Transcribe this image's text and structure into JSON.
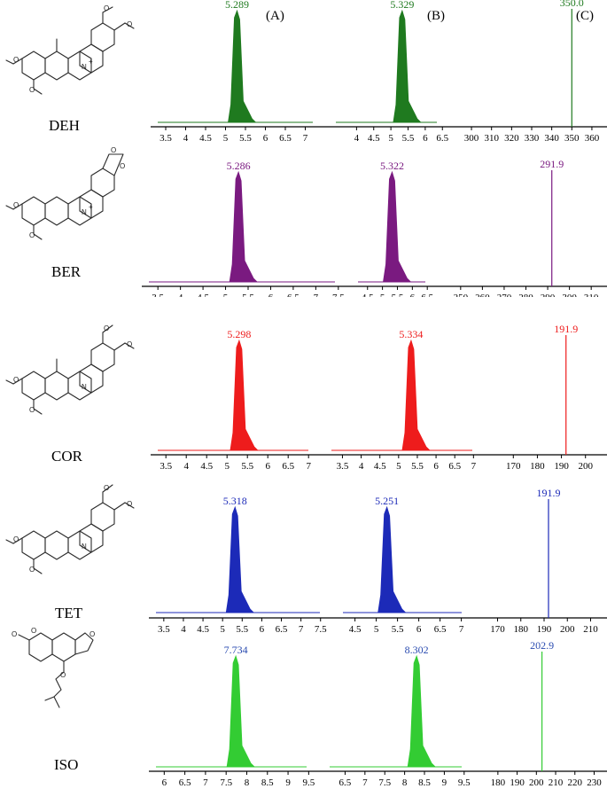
{
  "panel_letters": [
    "(A)",
    "(B)",
    "(C)"
  ],
  "compounds": [
    "DEH",
    "BER",
    "COR",
    "TET",
    "ISO"
  ],
  "colors": {
    "DEH": "#1f7a1f",
    "BER": "#7a1a80",
    "COR": "#ee1c1c",
    "TET": "#1c2ab8",
    "ISO": "#33cc33",
    "ISO_label": "#2a4bb0",
    "axis": "#000000"
  },
  "chart_data": [
    {
      "compound": "DEH",
      "type": "line",
      "segments": [
        {
          "panel": "A",
          "kind": "chromatogram",
          "x_ticks": [
            3.5,
            4,
            4.5,
            5,
            5.5,
            6,
            6.5,
            7
          ],
          "x_range": [
            3.3,
            7.5
          ],
          "peak_x": 5.289,
          "peak_label": "5.289"
        },
        {
          "panel": "B",
          "kind": "chromatogram",
          "x_ticks": [
            4,
            4.5,
            5,
            5.5,
            6,
            6.5
          ],
          "x_range": [
            3.5,
            6.7
          ],
          "peak_x": 5.329,
          "peak_label": "5.329"
        },
        {
          "panel": "C",
          "kind": "mass_spectrum",
          "x_ticks": [
            300,
            310,
            320,
            330,
            340,
            350,
            360
          ],
          "x_range": [
            296,
            364
          ],
          "peak_x": 350.0,
          "peak_label": "350.0"
        }
      ]
    },
    {
      "compound": "BER",
      "type": "line",
      "segments": [
        {
          "panel": "A",
          "kind": "chromatogram",
          "x_ticks": [
            3.5,
            4,
            4.5,
            5,
            5.5,
            6,
            6.5,
            7,
            7.5
          ],
          "x_range": [
            3.3,
            7.7
          ],
          "peak_x": 5.286,
          "peak_label": "5.286"
        },
        {
          "panel": "B",
          "kind": "chromatogram",
          "x_ticks": [
            4.5,
            5,
            5.5,
            6,
            6.5
          ],
          "x_range": [
            4.3,
            6.85
          ],
          "peak_x": 5.322,
          "peak_label": "5.322"
        },
        {
          "panel": "C",
          "kind": "mass_spectrum",
          "x_ticks": [
            250,
            260,
            270,
            280,
            290,
            300,
            310
          ],
          "x_range": [
            246,
            314
          ],
          "peak_x": 291.9,
          "peak_label": "291.9"
        }
      ]
    },
    {
      "compound": "COR",
      "type": "line",
      "segments": [
        {
          "panel": "A",
          "kind": "chromatogram",
          "x_ticks": [
            3.5,
            4,
            4.5,
            5,
            5.5,
            6,
            6.5,
            7
          ],
          "x_range": [
            3.3,
            7.3
          ],
          "peak_x": 5.298,
          "peak_label": "5.298"
        },
        {
          "panel": "B",
          "kind": "chromatogram",
          "x_ticks": [
            3.5,
            4,
            4.5,
            5,
            5.5,
            6,
            6.5,
            7
          ],
          "x_range": [
            3.3,
            7.3
          ],
          "peak_x": 5.334,
          "peak_label": "5.334"
        },
        {
          "panel": "C",
          "kind": "mass_spectrum",
          "x_ticks": [
            170,
            180,
            190,
            200
          ],
          "x_range": [
            164,
            206
          ],
          "peak_x": 191.9,
          "peak_label": "191.9"
        }
      ]
    },
    {
      "compound": "TET",
      "type": "line",
      "segments": [
        {
          "panel": "A",
          "kind": "chromatogram",
          "x_ticks": [
            3.5,
            4,
            4.5,
            5,
            5.5,
            6,
            6.5,
            7,
            7.5
          ],
          "x_range": [
            3.3,
            7.8
          ],
          "peak_x": 5.318,
          "peak_label": "5.318"
        },
        {
          "panel": "B",
          "kind": "chromatogram",
          "x_ticks": [
            4.5,
            5,
            5.5,
            6,
            6.5,
            7
          ],
          "x_range": [
            4.3,
            7.3
          ],
          "peak_x": 5.251,
          "peak_label": "5.251"
        },
        {
          "panel": "C",
          "kind": "mass_spectrum",
          "x_ticks": [
            170,
            180,
            190,
            200,
            210
          ],
          "x_range": [
            166,
            214
          ],
          "peak_x": 191.9,
          "peak_label": "191.9"
        }
      ]
    },
    {
      "compound": "ISO",
      "type": "line",
      "segments": [
        {
          "panel": "A",
          "kind": "chromatogram",
          "x_ticks": [
            6,
            6.5,
            7,
            7.5,
            8,
            8.5,
            9,
            9.5
          ],
          "x_range": [
            5.8,
            9.75
          ],
          "peak_x": 7.734,
          "peak_label": "7.734"
        },
        {
          "panel": "B",
          "kind": "chromatogram",
          "x_ticks": [
            6.5,
            7,
            7.5,
            8,
            8.5,
            9,
            9.5
          ],
          "x_range": [
            6.2,
            9.75
          ],
          "peak_x": 8.302,
          "peak_label": "8.302"
        },
        {
          "panel": "C",
          "kind": "mass_spectrum",
          "x_ticks": [
            180,
            190,
            200,
            210,
            220,
            230
          ],
          "x_range": [
            175,
            233
          ],
          "peak_x": 202.9,
          "peak_label": "202.9"
        }
      ]
    }
  ]
}
